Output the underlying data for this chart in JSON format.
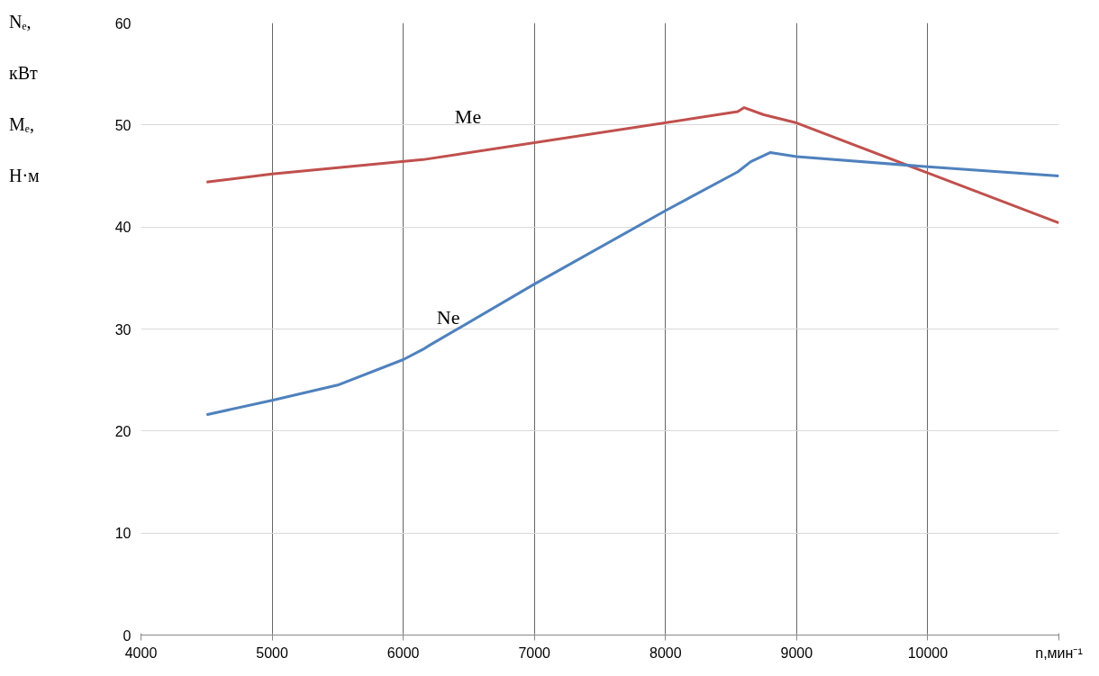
{
  "chart_data": {
    "type": "line",
    "xlabel": "n,мин⁻¹",
    "ylabel": "Nₑ, кВт Mₑ, Н·м",
    "xlim": [
      4000,
      11000
    ],
    "xticks": [
      4000,
      5000,
      6000,
      7000,
      8000,
      9000,
      10000
    ],
    "ylim": [
      0,
      60
    ],
    "yticks": [
      0,
      10,
      20,
      30,
      40,
      50,
      60
    ],
    "grid": true,
    "marker": "none",
    "line_style": "solid",
    "series": [
      {
        "name": "Me",
        "color": "#c0504d",
        "x": [
          4500,
          5000,
          6150,
          8550,
          8600,
          8750,
          9000,
          10000,
          11000
        ],
        "values": [
          44.4,
          45.2,
          46.6,
          51.3,
          51.7,
          51.0,
          50.2,
          45.3,
          40.4
        ]
      },
      {
        "name": "Ne",
        "color": "#4f81bd",
        "x": [
          4500,
          5000,
          5500,
          6000,
          6150,
          6200,
          7000,
          8000,
          8550,
          8650,
          8800,
          9000,
          10000,
          11000
        ],
        "values": [
          21.6,
          23.0,
          24.5,
          27.0,
          28.0,
          28.4,
          34.4,
          41.6,
          45.4,
          46.4,
          47.3,
          46.9,
          45.9,
          45.0
        ]
      }
    ]
  }
}
